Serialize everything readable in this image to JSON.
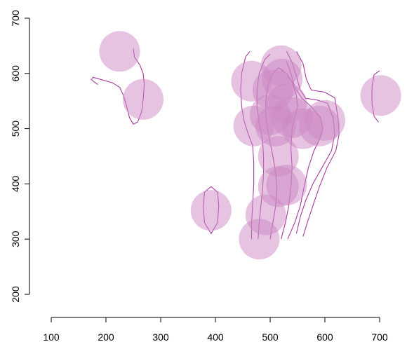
{
  "chart_data": {
    "type": "scatter",
    "title": "",
    "xlabel": "",
    "ylabel": "",
    "xlim": [
      100,
      700
    ],
    "ylim": [
      200,
      700
    ],
    "x_ticks": [
      100,
      200,
      300,
      400,
      500,
      600,
      700
    ],
    "y_ticks": [
      200,
      300,
      400,
      500,
      600,
      700
    ],
    "grid": false,
    "legend": "none",
    "point_color": "#cc88c4",
    "contour_color": "#a8399e",
    "points": [
      {
        "x": 225,
        "y": 640
      },
      {
        "x": 268,
        "y": 553
      },
      {
        "x": 392,
        "y": 352
      },
      {
        "x": 466,
        "y": 586
      },
      {
        "x": 470,
        "y": 505
      },
      {
        "x": 480,
        "y": 300
      },
      {
        "x": 492,
        "y": 344
      },
      {
        "x": 500,
        "y": 525
      },
      {
        "x": 505,
        "y": 570
      },
      {
        "x": 510,
        "y": 505
      },
      {
        "x": 515,
        "y": 450
      },
      {
        "x": 515,
        "y": 395
      },
      {
        "x": 520,
        "y": 614
      },
      {
        "x": 522,
        "y": 590
      },
      {
        "x": 530,
        "y": 545
      },
      {
        "x": 530,
        "y": 398
      },
      {
        "x": 540,
        "y": 520
      },
      {
        "x": 560,
        "y": 500
      },
      {
        "x": 590,
        "y": 505
      },
      {
        "x": 600,
        "y": 515
      },
      {
        "x": 702,
        "y": 560
      }
    ],
    "contours": [
      [
        [
          185,
          580
        ],
        [
          178,
          585
        ],
        [
          172,
          590
        ]
      ],
      [
        [
          250,
          645
        ],
        [
          252,
          630
        ],
        [
          262,
          615
        ],
        [
          268,
          600
        ],
        [
          270,
          580
        ],
        [
          268,
          552
        ],
        [
          265,
          530
        ],
        [
          258,
          512
        ],
        [
          250,
          508
        ],
        [
          243,
          520
        ],
        [
          238,
          540
        ],
        [
          232,
          560
        ],
        [
          225,
          575
        ],
        [
          212,
          583
        ],
        [
          195,
          588
        ],
        [
          176,
          593
        ],
        [
          175,
          590
        ]
      ],
      [
        [
          392,
          395
        ],
        [
          380,
          385
        ],
        [
          378,
          360
        ],
        [
          380,
          330
        ],
        [
          392,
          310
        ],
        [
          404,
          330
        ],
        [
          406,
          360
        ],
        [
          404,
          385
        ],
        [
          392,
          395
        ]
      ],
      [
        [
          463,
          640
        ],
        [
          455,
          630
        ],
        [
          448,
          600
        ],
        [
          446,
          570
        ],
        [
          448,
          540
        ],
        [
          452,
          515
        ],
        [
          460,
          490
        ],
        [
          468,
          470
        ],
        [
          470,
          440
        ],
        [
          470,
          400
        ],
        [
          468,
          360
        ],
        [
          466,
          330
        ],
        [
          466,
          300
        ]
      ],
      [
        [
          478,
          300
        ],
        [
          480,
          330
        ],
        [
          483,
          360
        ],
        [
          486,
          390
        ],
        [
          488,
          420
        ],
        [
          488,
          450
        ],
        [
          486,
          480
        ],
        [
          480,
          510
        ],
        [
          476,
          540
        ],
        [
          476,
          570
        ],
        [
          480,
          600
        ],
        [
          490,
          625
        ],
        [
          500,
          635
        ]
      ],
      [
        [
          500,
          300
        ],
        [
          505,
          330
        ],
        [
          510,
          360
        ],
        [
          512,
          390
        ],
        [
          510,
          420
        ],
        [
          505,
          450
        ],
        [
          500,
          475
        ],
        [
          495,
          500
        ],
        [
          492,
          525
        ],
        [
          492,
          550
        ],
        [
          496,
          580
        ],
        [
          505,
          600
        ],
        [
          515,
          610
        ],
        [
          525,
          605
        ]
      ],
      [
        [
          520,
          300
        ],
        [
          528,
          330
        ],
        [
          534,
          360
        ],
        [
          538,
          395
        ],
        [
          540,
          430
        ],
        [
          538,
          465
        ],
        [
          540,
          500
        ],
        [
          545,
          520
        ],
        [
          550,
          540
        ],
        [
          548,
          560
        ],
        [
          540,
          585
        ],
        [
          530,
          600
        ],
        [
          520,
          605
        ]
      ],
      [
        [
          532,
          300
        ],
        [
          545,
          330
        ],
        [
          555,
          360
        ],
        [
          562,
          395
        ],
        [
          570,
          430
        ],
        [
          580,
          460
        ],
        [
          590,
          480
        ],
        [
          596,
          500
        ],
        [
          592,
          520
        ],
        [
          575,
          540
        ],
        [
          558,
          555
        ],
        [
          545,
          575
        ],
        [
          538,
          600
        ],
        [
          530,
          622
        ]
      ],
      [
        [
          530,
          640
        ],
        [
          540,
          620
        ],
        [
          548,
          595
        ],
        [
          555,
          570
        ],
        [
          565,
          555
        ],
        [
          585,
          552
        ],
        [
          605,
          546
        ],
        [
          615,
          520
        ],
        [
          618,
          490
        ],
        [
          612,
          460
        ],
        [
          595,
          430
        ],
        [
          578,
          400
        ],
        [
          565,
          370
        ],
        [
          555,
          340
        ],
        [
          548,
          310
        ]
      ],
      [
        [
          548,
          640
        ],
        [
          560,
          618
        ],
        [
          566,
          590
        ],
        [
          575,
          570
        ],
        [
          600,
          566
        ],
        [
          618,
          556
        ],
        [
          624,
          520
        ],
        [
          626,
          490
        ],
        [
          620,
          460
        ],
        [
          604,
          430
        ],
        [
          590,
          395
        ],
        [
          578,
          360
        ],
        [
          568,
          330
        ],
        [
          560,
          305
        ]
      ],
      [
        [
          700,
          605
        ],
        [
          690,
          598
        ],
        [
          686,
          575
        ],
        [
          686,
          545
        ],
        [
          690,
          522
        ],
        [
          698,
          512
        ]
      ]
    ]
  }
}
